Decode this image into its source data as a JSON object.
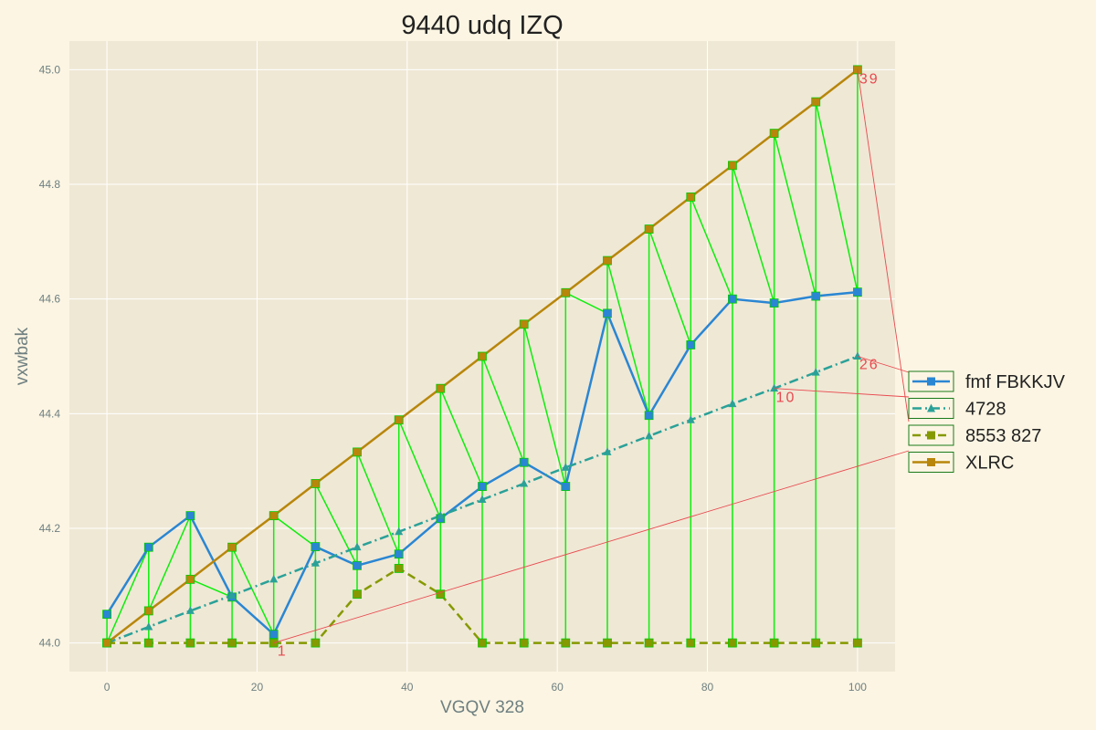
{
  "chart_data": {
    "type": "line",
    "title": "9440 udq IZQ",
    "xlabel": "VGQV 328",
    "ylabel": "vxwbak",
    "xlim": [
      -5,
      105
    ],
    "ylim": [
      43.95,
      45.05
    ],
    "xticks": [
      0,
      20,
      40,
      60,
      80,
      100
    ],
    "yticks": [
      44.0,
      44.2,
      44.4,
      44.6,
      44.8,
      45.0
    ],
    "grid": true,
    "legend_position": "right",
    "x": [
      0,
      5.56,
      11.11,
      16.67,
      22.22,
      27.78,
      33.33,
      38.89,
      44.44,
      50.0,
      55.56,
      61.11,
      66.67,
      72.22,
      77.78,
      83.33,
      88.89,
      94.44,
      100.0
    ],
    "series": [
      {
        "name": "fmf FBKKJV",
        "color": "#2a86d3",
        "style": "solid",
        "marker": "square",
        "values": [
          44.05,
          44.167,
          44.222,
          44.08,
          44.015,
          44.168,
          44.135,
          44.155,
          44.217,
          44.273,
          44.315,
          44.273,
          44.575,
          44.397,
          44.52,
          44.6,
          44.593,
          44.605,
          44.612
        ]
      },
      {
        "name": "4728",
        "color": "#2aa198",
        "style": "dashdot",
        "marker": "triangle",
        "values": [
          44.0,
          44.028,
          44.056,
          44.083,
          44.111,
          44.139,
          44.167,
          44.194,
          44.222,
          44.25,
          44.278,
          44.306,
          44.333,
          44.361,
          44.389,
          44.417,
          44.444,
          44.472,
          44.5
        ]
      },
      {
        "name": "8553 827",
        "color": "#859900",
        "style": "dashed",
        "marker": "square",
        "values": [
          44.0,
          44.0,
          44.0,
          44.0,
          44.0,
          44.0,
          44.085,
          44.13,
          44.085,
          44.0,
          44.0,
          44.0,
          44.0,
          44.0,
          44.0,
          44.0,
          44.0,
          44.0,
          44.0
        ]
      },
      {
        "name": "XLRC",
        "color": "#b8860b",
        "style": "solid",
        "marker": "square",
        "values": [
          44.0,
          44.056,
          44.111,
          44.167,
          44.222,
          44.278,
          44.333,
          44.389,
          44.444,
          44.5,
          44.556,
          44.611,
          44.667,
          44.722,
          44.778,
          44.833,
          44.889,
          44.944,
          45.0
        ]
      }
    ],
    "connector_color": "#00ee00",
    "annotations": [
      {
        "text": "1",
        "series": 2,
        "index": 4
      },
      {
        "text": "10",
        "series": 1,
        "index": 16
      },
      {
        "text": "26",
        "series": 1,
        "index": 18
      },
      {
        "text": "39",
        "series": 3,
        "index": 18
      }
    ],
    "annotation_color": "#e8494f"
  }
}
